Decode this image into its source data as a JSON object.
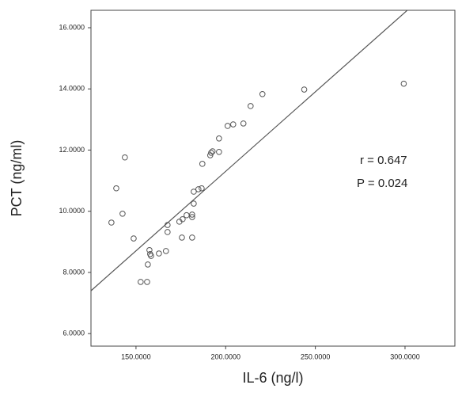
{
  "chart_data": {
    "type": "scatter",
    "x_label": "IL-6 (ng/l)",
    "y_label": "PCT (ng/ml)",
    "xlim": [
      124.9,
      327.8
    ],
    "ylim": [
      5.59,
      16.57
    ],
    "xticks": [
      {
        "value": 150,
        "label": "150.0000"
      },
      {
        "value": 200,
        "label": "200.0000"
      },
      {
        "value": 250,
        "label": "250.0000"
      },
      {
        "value": 300,
        "label": "300.0000"
      }
    ],
    "yticks": [
      {
        "value": 6,
        "label": "6.0000"
      },
      {
        "value": 8,
        "label": "8.0000"
      },
      {
        "value": 10,
        "label": "10.0000"
      },
      {
        "value": 12,
        "label": "12.0000"
      },
      {
        "value": 14,
        "label": "14.0000"
      },
      {
        "value": 16,
        "label": "16.0000"
      }
    ],
    "grid": false,
    "color": "#555555",
    "fit_line": {
      "slope": 0.052,
      "intercept": 0.905
    },
    "annotations": [
      "r = 0.647",
      "P = 0.024"
    ],
    "x": [
      136.3,
      139.0,
      142.5,
      143.8,
      148.7,
      152.6,
      156.2,
      156.6,
      157.5,
      157.9,
      158.4,
      162.8,
      166.7,
      167.6,
      167.6,
      174.2,
      175.6,
      176.0,
      178.2,
      181.3,
      181.3,
      181.3,
      182.2,
      182.2,
      184.8,
      186.6,
      187.0,
      191.4,
      191.9,
      192.7,
      196.3,
      196.3,
      201.1,
      204.2,
      209.9,
      213.9,
      220.5,
      243.8,
      299.3
    ],
    "values": [
      9.63,
      10.75,
      9.92,
      11.76,
      9.11,
      7.69,
      7.69,
      8.26,
      8.73,
      8.6,
      8.54,
      8.62,
      8.7,
      9.55,
      9.32,
      9.66,
      9.14,
      9.74,
      9.87,
      9.89,
      9.14,
      9.81,
      10.25,
      10.64,
      10.72,
      10.75,
      11.55,
      11.83,
      11.91,
      11.96,
      11.94,
      12.38,
      12.79,
      12.84,
      12.87,
      13.44,
      13.83,
      13.98,
      14.17
    ]
  }
}
